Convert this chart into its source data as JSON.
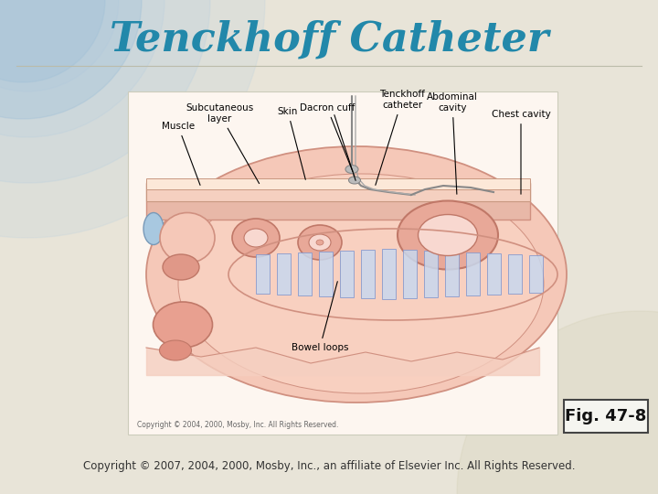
{
  "title": "Tenckhoff Catheter",
  "title_color": "#2288aa",
  "title_fontsize": 32,
  "fig_label": "Fig. 47-8",
  "fig_label_fontsize": 13,
  "copyright_text": "Copyright © 2007, 2004, 2000, Mosby, Inc., an affiliate of Elsevier Inc. All Rights Reserved.",
  "copyright_fontsize": 8.5,
  "inner_copyright": "Copyright © 2004, 2000, Mosby, Inc. All Rights Reserved.",
  "inner_copyright_fontsize": 5.5,
  "bg_color": "#e8e4d8",
  "slide_bg": "#dddbd0",
  "blue_arc_color": "#b0cce0",
  "img_bg": "#fdf6f0",
  "separator_color": "#bbbbaa",
  "img_border": "#ccccbb",
  "body_fill": "#f5c8b8",
  "body_stroke": "#d09080",
  "skin_fill": "#fce8d8",
  "muscle_fill": "#e8b0a0",
  "rib_fill": "#c8d8ee",
  "rib_stroke": "#8899cc",
  "bowel_fill": "#e8a898",
  "bowel_stroke": "#c07868",
  "bowel_inner": "#f8d8d0",
  "blue_blob": "#a8c8e0",
  "pink_blob": "#e89888",
  "catheter_color": "#888888",
  "label_fontsize": 7.5,
  "fig_box_color": "#f5f5f0",
  "fig_box_edge": "#444444"
}
